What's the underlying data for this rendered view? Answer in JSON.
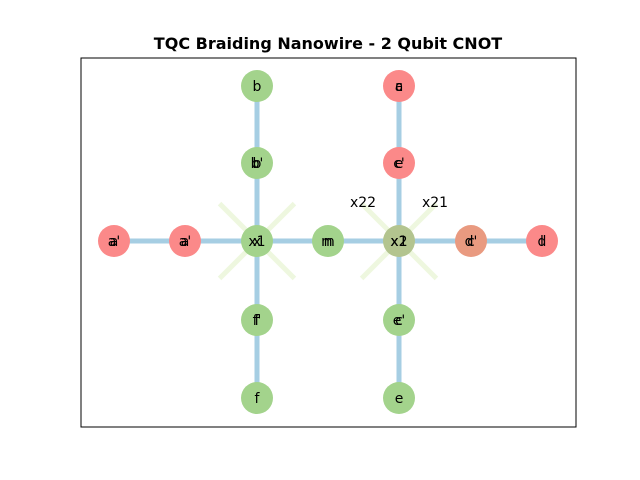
{
  "title": "TQC Braiding Nanowire - 2 Qubit CNOT",
  "colors": {
    "wire": "#a6cee3",
    "green": "#a3d38c",
    "red": "#fb8989",
    "mixed": "#e99a80",
    "junction_right": "#b3c48f",
    "x_marks": "#eef7df"
  },
  "nodes": [
    {
      "id": "a",
      "label": "a",
      "overlay": "a'",
      "color": "red"
    },
    {
      "id": "a2",
      "label": "a'",
      "overlay": "a",
      "color": "red"
    },
    {
      "id": "x1",
      "label": "x1",
      "overlay": "x",
      "color": "green"
    },
    {
      "id": "m",
      "label": "m",
      "overlay": "n",
      "color": "green"
    },
    {
      "id": "x2",
      "label": "x2",
      "overlay": "x1",
      "color": "junction_right"
    },
    {
      "id": "d2",
      "label": "d'",
      "overlay": "c",
      "color": "mixed"
    },
    {
      "id": "d",
      "label": "d",
      "overlay": "l",
      "color": "red"
    },
    {
      "id": "b",
      "label": "b",
      "overlay": "",
      "color": "green"
    },
    {
      "id": "b2",
      "label": "b'",
      "overlay": "b",
      "color": "green"
    },
    {
      "id": "f2",
      "label": "f'",
      "overlay": "f",
      "color": "green"
    },
    {
      "id": "f",
      "label": "f",
      "overlay": "",
      "color": "green"
    },
    {
      "id": "c",
      "label": "c",
      "overlay": "a",
      "color": "red"
    },
    {
      "id": "c2",
      "label": "c'",
      "overlay": "e",
      "color": "red"
    },
    {
      "id": "e2",
      "label": "e'",
      "overlay": "c",
      "color": "green"
    },
    {
      "id": "e",
      "label": "e",
      "overlay": "",
      "color": "green"
    }
  ],
  "junction_labels": [
    {
      "id": "x22",
      "text": "x22"
    },
    {
      "id": "x21",
      "text": "x21"
    }
  ]
}
